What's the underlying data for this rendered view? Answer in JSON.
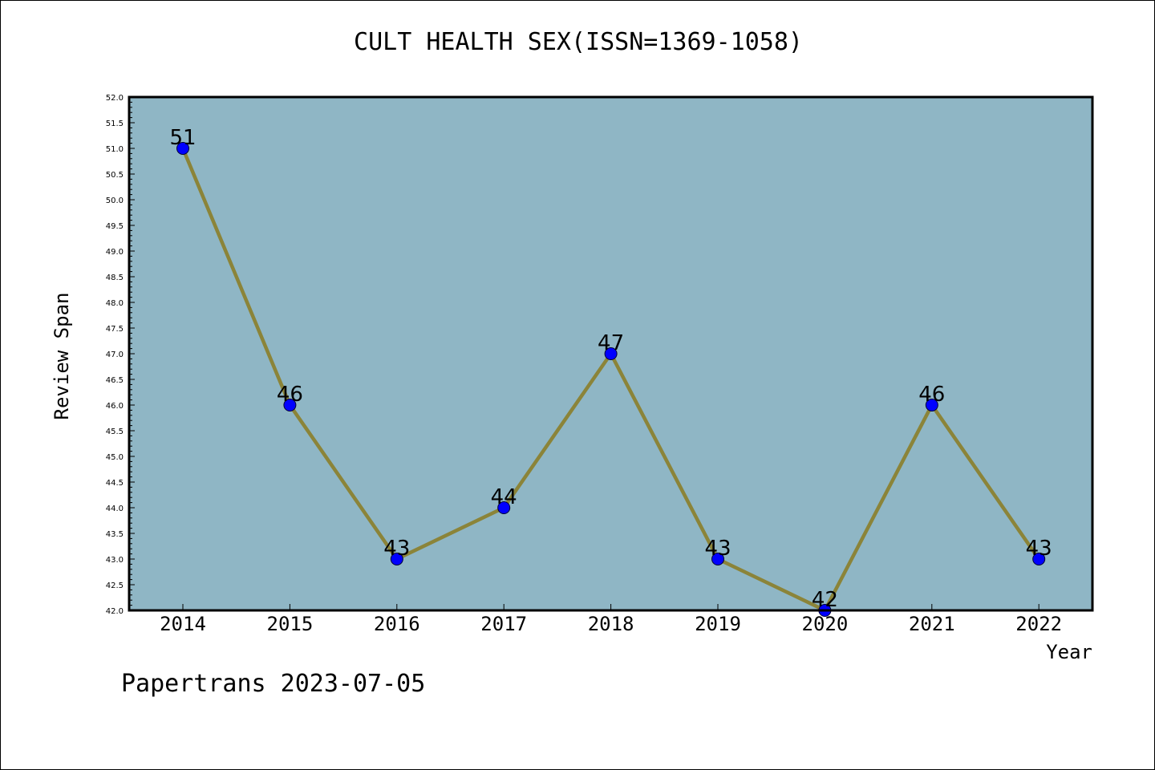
{
  "title": "CULT HEALTH SEX(ISSN=1369-1058)",
  "footer": "Papertrans 2023-07-05",
  "colors": {
    "plot_background": "#8fb6c5",
    "line": "#8b8439",
    "marker": "#0000ff",
    "axis": "#000000"
  },
  "chart_data": {
    "type": "line",
    "title": "CULT HEALTH SEX(ISSN=1369-1058)",
    "xlabel": "Year",
    "ylabel": "Review Span",
    "categories": [
      "2014",
      "2015",
      "2016",
      "2017",
      "2018",
      "2019",
      "2020",
      "2021",
      "2022"
    ],
    "series": [
      {
        "values": [
          51,
          46,
          43,
          44,
          47,
          43,
          42,
          46,
          43
        ]
      }
    ],
    "data_labels": [
      "51",
      "46",
      "43",
      "44",
      "47",
      "43",
      "42",
      "46",
      "43"
    ],
    "ylim": [
      42.0,
      52.0
    ],
    "ytick_labels": [
      "42.0",
      "42.5",
      "43.0",
      "43.5",
      "44.0",
      "44.5",
      "45.0",
      "45.5",
      "46.0",
      "46.5",
      "47.0",
      "47.5",
      "48.0",
      "48.5",
      "49.0",
      "49.5",
      "50.0",
      "50.5",
      "51.0",
      "51.5",
      "52.0"
    ],
    "grid": false,
    "legend": "none"
  }
}
